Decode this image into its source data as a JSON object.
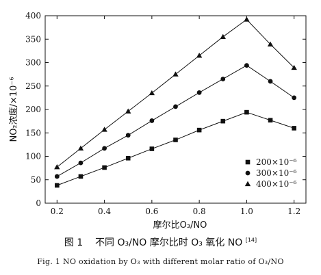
{
  "chart_data": {
    "type": "line",
    "xlabel": "摩尔比O₃/NO",
    "ylabel": "NO₂浓度/×10⁻⁶",
    "xlim": [
      0.15,
      1.25
    ],
    "ylim": [
      0,
      400
    ],
    "x_ticks": [
      "0.2",
      "0.4",
      "0.6",
      "0.8",
      "1.0",
      "1.2"
    ],
    "y_ticks": [
      "0",
      "50",
      "100",
      "150",
      "200",
      "250",
      "300",
      "350",
      "400"
    ],
    "legend_position": "lower-right",
    "grid": false,
    "x": [
      0.2,
      0.3,
      0.4,
      0.5,
      0.6,
      0.7,
      0.8,
      0.9,
      1.0,
      1.1,
      1.2
    ],
    "series": [
      {
        "name": "200×10⁻⁶",
        "marker": "square",
        "values": [
          38,
          57,
          76,
          96,
          116,
          135,
          156,
          175,
          194,
          177,
          160
        ]
      },
      {
        "name": "300×10⁻⁶",
        "marker": "circle",
        "values": [
          57,
          86,
          117,
          145,
          176,
          206,
          236,
          265,
          294,
          260,
          225
        ]
      },
      {
        "name": "400×10⁻⁶",
        "marker": "triangle",
        "values": [
          77,
          117,
          157,
          196,
          235,
          275,
          315,
          355,
          392,
          339,
          289
        ]
      }
    ]
  },
  "caption": {
    "cn_label": "图 1",
    "cn_text": "不同 O₃/NO 摩尔比时 O₃ 氧化 NO",
    "cn_ref": "[14]",
    "en_text": "Fig. 1   NO oxidation by O₃ with different molar ratio of O₃/NO"
  }
}
